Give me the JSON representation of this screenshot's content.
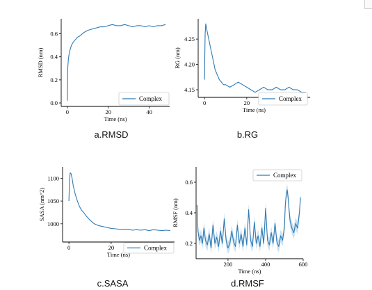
{
  "colors": {
    "series": "#2e7bb5",
    "band": "#a9cbe6"
  },
  "chart_data": [
    {
      "type": "line",
      "caption": "a.RMSD",
      "xlabel": "Time (ns)",
      "ylabel": "RMSD (nm)",
      "xlim": [
        -3,
        50
      ],
      "ylim": [
        -0.03,
        0.73
      ],
      "xticks": [
        0,
        20,
        40
      ],
      "yticks": [
        0.0,
        0.2,
        0.4,
        0.6
      ],
      "ytick_labels": [
        "0.0",
        "0.2",
        "0.4",
        "0.6"
      ],
      "legend": "lower-right",
      "series": [
        {
          "name": "Complex",
          "x": [
            0,
            0.2,
            0.5,
            1,
            2,
            3,
            4,
            5,
            6,
            8,
            10,
            12,
            14,
            16,
            18,
            20,
            22,
            24,
            26,
            28,
            30,
            32,
            34,
            36,
            38,
            40,
            42,
            44,
            46,
            48
          ],
          "y": [
            0.02,
            0.3,
            0.38,
            0.44,
            0.5,
            0.53,
            0.55,
            0.57,
            0.58,
            0.61,
            0.63,
            0.64,
            0.65,
            0.66,
            0.66,
            0.67,
            0.68,
            0.67,
            0.67,
            0.68,
            0.67,
            0.66,
            0.67,
            0.67,
            0.66,
            0.67,
            0.66,
            0.67,
            0.67,
            0.68
          ]
        }
      ]
    },
    {
      "type": "line",
      "caption": "b.RG",
      "xlabel": "Time (ns)",
      "ylabel": "RG (nm)",
      "xlim": [
        -3,
        50
      ],
      "ylim": [
        4.135,
        4.29
      ],
      "xticks": [
        0,
        20,
        40
      ],
      "yticks": [
        4.15,
        4.2,
        4.25
      ],
      "ytick_labels": [
        "4.15",
        "4.20",
        "4.25"
      ],
      "legend": "lower-right",
      "series": [
        {
          "name": "Complex",
          "x": [
            0,
            0.3,
            0.6,
            1,
            1.5,
            2,
            3,
            4,
            5,
            6,
            7,
            8,
            9,
            10,
            12,
            14,
            16,
            18,
            20,
            22,
            24,
            26,
            28,
            30,
            32,
            34,
            36,
            38,
            40,
            42,
            44,
            46,
            48
          ],
          "y": [
            4.17,
            4.26,
            4.28,
            4.27,
            4.26,
            4.25,
            4.23,
            4.21,
            4.19,
            4.18,
            4.17,
            4.165,
            4.16,
            4.16,
            4.155,
            4.16,
            4.165,
            4.16,
            4.155,
            4.15,
            4.145,
            4.15,
            4.155,
            4.15,
            4.15,
            4.155,
            4.15,
            4.15,
            4.155,
            4.15,
            4.15,
            4.145,
            4.145
          ]
        }
      ]
    },
    {
      "type": "line",
      "caption": "c.SASA",
      "xlabel": "Time (ns)",
      "ylabel": "SASA (nm^2)",
      "xlim": [
        -3,
        50
      ],
      "ylim": [
        960,
        1125
      ],
      "xticks": [
        0,
        20,
        40
      ],
      "yticks": [
        1000,
        1050,
        1100
      ],
      "ytick_labels": [
        "1000",
        "1050",
        "1100"
      ],
      "legend": "lower-right",
      "series": [
        {
          "name": "Complex",
          "x": [
            0,
            0.3,
            0.6,
            1,
            1.5,
            2,
            3,
            4,
            5,
            6,
            7,
            8,
            10,
            12,
            14,
            16,
            18,
            20,
            22,
            24,
            26,
            28,
            30,
            32,
            34,
            36,
            38,
            40,
            42,
            44,
            46,
            48
          ],
          "y": [
            1050,
            1095,
            1112,
            1110,
            1100,
            1085,
            1065,
            1050,
            1038,
            1030,
            1025,
            1018,
            1008,
            1000,
            996,
            994,
            992,
            990,
            989,
            988,
            987,
            988,
            986,
            987,
            986,
            987,
            985,
            987,
            986,
            985,
            986,
            985
          ]
        }
      ]
    },
    {
      "type": "line",
      "caption": "d.RMSF",
      "xlabel": "Time (ns)",
      "ylabel": "RMSF (nm)",
      "xlim": [
        30,
        600
      ],
      "ylim": [
        0.1,
        0.7
      ],
      "xticks": [
        200,
        400,
        600
      ],
      "yticks": [
        0.2,
        0.4,
        0.6
      ],
      "ytick_labels": [
        "0.2",
        "0.4",
        "0.6"
      ],
      "legend": "upper-right",
      "series": [
        {
          "name": "Complex",
          "x": [
            35,
            40,
            48,
            56,
            64,
            72,
            80,
            90,
            100,
            110,
            120,
            130,
            140,
            150,
            160,
            170,
            180,
            190,
            200,
            210,
            220,
            230,
            240,
            250,
            260,
            270,
            280,
            290,
            300,
            310,
            320,
            330,
            340,
            350,
            360,
            370,
            380,
            390,
            400,
            410,
            420,
            430,
            440,
            450,
            460,
            470,
            480,
            490,
            500,
            505,
            510,
            515,
            520,
            525,
            530,
            540,
            550,
            560,
            570,
            580,
            586
          ],
          "y": [
            0.45,
            0.28,
            0.22,
            0.25,
            0.2,
            0.3,
            0.22,
            0.19,
            0.26,
            0.17,
            0.32,
            0.2,
            0.24,
            0.18,
            0.28,
            0.2,
            0.36,
            0.22,
            0.17,
            0.2,
            0.28,
            0.21,
            0.18,
            0.32,
            0.2,
            0.26,
            0.18,
            0.3,
            0.19,
            0.42,
            0.22,
            0.18,
            0.34,
            0.2,
            0.25,
            0.18,
            0.3,
            0.2,
            0.43,
            0.22,
            0.19,
            0.27,
            0.2,
            0.33,
            0.21,
            0.18,
            0.25,
            0.22,
            0.3,
            0.45,
            0.52,
            0.55,
            0.5,
            0.42,
            0.35,
            0.3,
            0.27,
            0.33,
            0.3,
            0.4,
            0.5
          ]
        }
      ]
    }
  ]
}
